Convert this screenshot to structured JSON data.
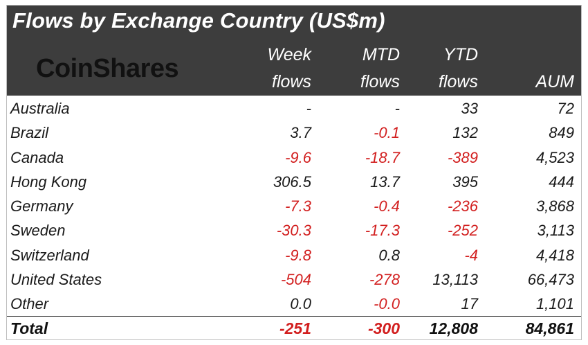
{
  "header": {
    "title": "Flows by Exchange Country (US$m)",
    "logo": "CoinShares",
    "col_week_top": "Week",
    "col_week_bottom": "flows",
    "col_mtd_top": "MTD",
    "col_mtd_bottom": "flows",
    "col_ytd_top": "YTD",
    "col_ytd_bottom": "flows",
    "col_aum": "AUM"
  },
  "rows": [
    {
      "country": "Australia",
      "week": "-",
      "mtd": "-",
      "ytd": "33",
      "aum": "72",
      "week_neg": false,
      "mtd_neg": false,
      "ytd_neg": false
    },
    {
      "country": "Brazil",
      "week": "3.7",
      "mtd": "-0.1",
      "ytd": "132",
      "aum": "849",
      "week_neg": false,
      "mtd_neg": true,
      "ytd_neg": false
    },
    {
      "country": "Canada",
      "week": "-9.6",
      "mtd": "-18.7",
      "ytd": "-389",
      "aum": "4,523",
      "week_neg": true,
      "mtd_neg": true,
      "ytd_neg": true
    },
    {
      "country": "Hong Kong",
      "week": "306.5",
      "mtd": "13.7",
      "ytd": "395",
      "aum": "444",
      "week_neg": false,
      "mtd_neg": false,
      "ytd_neg": false
    },
    {
      "country": "Germany",
      "week": "-7.3",
      "mtd": "-0.4",
      "ytd": "-236",
      "aum": "3,868",
      "week_neg": true,
      "mtd_neg": true,
      "ytd_neg": true
    },
    {
      "country": "Sweden",
      "week": "-30.3",
      "mtd": "-17.3",
      "ytd": "-252",
      "aum": "3,113",
      "week_neg": true,
      "mtd_neg": true,
      "ytd_neg": true
    },
    {
      "country": "Switzerland",
      "week": "-9.8",
      "mtd": "0.8",
      "ytd": "-4",
      "aum": "4,418",
      "week_neg": true,
      "mtd_neg": false,
      "ytd_neg": true
    },
    {
      "country": "United States",
      "week": "-504",
      "mtd": "-278",
      "ytd": "13,113",
      "aum": "66,473",
      "week_neg": true,
      "mtd_neg": true,
      "ytd_neg": false
    },
    {
      "country": "Other",
      "week": "0.0",
      "mtd": "-0.0",
      "ytd": "17",
      "aum": "1,101",
      "week_neg": false,
      "mtd_neg": true,
      "ytd_neg": false
    }
  ],
  "total": {
    "label": "Total",
    "week": "-251",
    "mtd": "-300",
    "ytd": "12,808",
    "aum": "84,861"
  },
  "colors": {
    "header_bg": "#3d3d3d",
    "negative": "#d21f1f",
    "text": "#1a1a1a"
  }
}
